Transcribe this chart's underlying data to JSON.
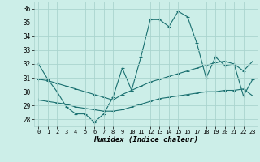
{
  "xlabel": "Humidex (Indice chaleur)",
  "xlim": [
    -0.5,
    23.5
  ],
  "ylim": [
    27.5,
    36.5
  ],
  "yticks": [
    28,
    29,
    30,
    31,
    32,
    33,
    34,
    35,
    36
  ],
  "xticks": [
    0,
    1,
    2,
    3,
    4,
    5,
    6,
    7,
    8,
    9,
    10,
    11,
    12,
    13,
    14,
    15,
    16,
    17,
    18,
    19,
    20,
    21,
    22,
    23
  ],
  "bg_color": "#cceee8",
  "grid_color": "#aad4ce",
  "line_color": "#1a7070",
  "line1_y": [
    32.0,
    30.9,
    30.0,
    28.9,
    28.4,
    28.4,
    27.8,
    28.4,
    29.6,
    31.7,
    30.1,
    32.5,
    35.2,
    35.2,
    34.7,
    35.8,
    35.4,
    33.5,
    31.0,
    32.5,
    31.9,
    32.0,
    29.7,
    30.9
  ],
  "line2_y": [
    30.9,
    30.8,
    30.6,
    30.4,
    30.2,
    30.0,
    29.8,
    29.6,
    29.4,
    29.8,
    30.1,
    30.4,
    30.7,
    30.9,
    31.1,
    31.3,
    31.5,
    31.7,
    31.9,
    32.1,
    32.2,
    32.0,
    31.5,
    32.2
  ],
  "line3_y": [
    29.4,
    29.3,
    29.2,
    29.1,
    28.9,
    28.8,
    28.7,
    28.6,
    28.6,
    28.7,
    28.9,
    29.1,
    29.3,
    29.5,
    29.6,
    29.7,
    29.8,
    29.9,
    30.0,
    30.0,
    30.1,
    30.1,
    30.2,
    29.7
  ]
}
